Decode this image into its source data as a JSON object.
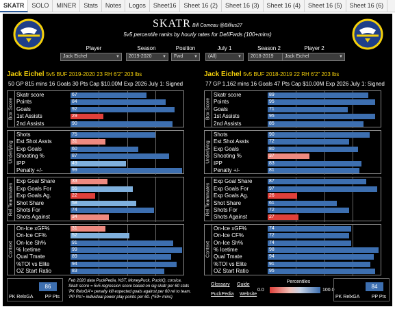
{
  "tabs": [
    "SKATR",
    "SOLO",
    "MINER",
    "Stats",
    "Notes",
    "Logos",
    "Sheet16",
    "Sheet 16 (2)",
    "Sheet 16 (3)",
    "Sheet 16 (4)",
    "Sheet 16 (5)",
    "Sheet 16 (6)"
  ],
  "header": {
    "title": "SKATR",
    "byline": "Bill Comeau @Billius27",
    "subtitle": "5v5 percentile ranks by hourly rates for Def/Fwds (100+mins)"
  },
  "filters": {
    "player_label": "Player",
    "player_value": "Jack Eichel",
    "season_label": "Season",
    "season_value": "2019-2020",
    "position_label": "Position",
    "position_value": "Fwd",
    "july1_label": "July 1",
    "july1_value": "(All)",
    "season2_label": "Season 2",
    "season2_value": "2018-2019",
    "player2_label": "Player 2",
    "player2_value": "Jack Eichel"
  },
  "colors": {
    "blue": "#3d6fb0",
    "light_blue": "#7fb0dd",
    "red": "#e0403a",
    "light_red": "#ee8a80",
    "mid_gray": "#9aa8c0",
    "gold": "#f5d10b"
  },
  "left": {
    "name": "Jack Eichel",
    "info": "5v5 BUF 2019-2020 23 RH 6'2\" 203 lbs",
    "stats": "50 GP 815 mins  16 Goals  30 Pts  Cap $10.00M  Exp 2026  July 1: Signed",
    "box": [
      [
        "Skatr score",
        67
      ],
      [
        "Points",
        84
      ],
      [
        "Goals",
        92
      ],
      [
        "1st Assists",
        29
      ],
      [
        "2nd Assists",
        90
      ]
    ],
    "underlying": [
      [
        "Shots",
        75
      ],
      [
        "Est Shot Assts",
        31
      ],
      [
        "Exp Goals",
        60
      ],
      [
        "Shooting %",
        87
      ],
      [
        "IPP",
        49
      ],
      [
        "Penalty +/-",
        99
      ]
    ],
    "rel": [
      [
        "Exp Goal Share",
        33
      ],
      [
        "Exp Goals For",
        55
      ],
      [
        "Exp Goals Ag.",
        22
      ],
      [
        "Shot Share",
        58
      ],
      [
        "Shots For",
        74
      ],
      [
        "Shots Against",
        34
      ]
    ],
    "context": [
      [
        "On-Ice xGF%",
        31
      ],
      [
        "On-Ice CF%",
        52
      ],
      [
        "On-Ice Sh%",
        91
      ],
      [
        "% Icetime",
        99
      ],
      [
        "Qual Tmate",
        89
      ],
      [
        "%TOI vs Elite",
        94
      ],
      [
        "OZ Start Ratio",
        83
      ]
    ]
  },
  "right": {
    "name": "Jack Eichel",
    "info": "5v5 BUF 2018-2019 22 RH 6'2\" 203 lbs",
    "stats": "77 GP 1,162 mins  16 Goals  47 Pts  Cap $10.00M  Exp 2026  July 1: Signed",
    "box": [
      [
        "Skatr score",
        89
      ],
      [
        "Points",
        95
      ],
      [
        "Goals",
        71
      ],
      [
        "1st Assists",
        95
      ],
      [
        "2nd Assists",
        85
      ]
    ],
    "underlying": [
      [
        "Shots",
        90
      ],
      [
        "Est Shot Assts",
        72
      ],
      [
        "Exp Goals",
        80
      ],
      [
        "Shooting %",
        37
      ],
      [
        "IPP",
        83
      ],
      [
        "Penalty +/-",
        81
      ]
    ],
    "rel": [
      [
        "Exp Goal Share",
        87
      ],
      [
        "Exp Goals For",
        97
      ],
      [
        "Exp Goals Ag.",
        26
      ],
      [
        "Shot Share",
        61
      ],
      [
        "Shots For",
        72
      ],
      [
        "Shots Against",
        27
      ]
    ],
    "context": [
      [
        "On-Ice xGF%",
        74
      ],
      [
        "On-Ice CF%",
        72
      ],
      [
        "On-Ice Sh%",
        74
      ],
      [
        "% Icetime",
        98
      ],
      [
        "Qual Tmate",
        94
      ],
      [
        "%TOI vs Elite",
        91
      ],
      [
        "OZ Start Ratio",
        95
      ]
    ]
  },
  "sections": {
    "box": "Box Score",
    "underlying": "Underlying",
    "rel": "Rel Teammates",
    "context": "Context"
  },
  "footer": {
    "left_box_value": "86",
    "left_box_l1": "PK RelxGA",
    "left_box_l2": "PP Pts",
    "right_box_value": "84",
    "right_box_l1": "PK RelxGA",
    "right_box_l2": "PP Pts",
    "note1": "Feb 2020 data PuckPedia, NST, MoneyPuck, PuckIQ, corsica.",
    "note2": "Skatr score = 5v5 regression score based on sig skatr per 60 stats",
    "note3": "'PK RelxGA'= penalty kill expected goals against per 60 rel to team.",
    "note4": "'PP Pts'= individual power play points per 60.  (*50+ mins)",
    "glossary": "Glossary",
    "guide": "Guide",
    "puckpedia": "PuckPedia",
    "website": "Website",
    "legend_title": "Percentiles",
    "legend_min": "0.0",
    "legend_max": "100.0"
  }
}
